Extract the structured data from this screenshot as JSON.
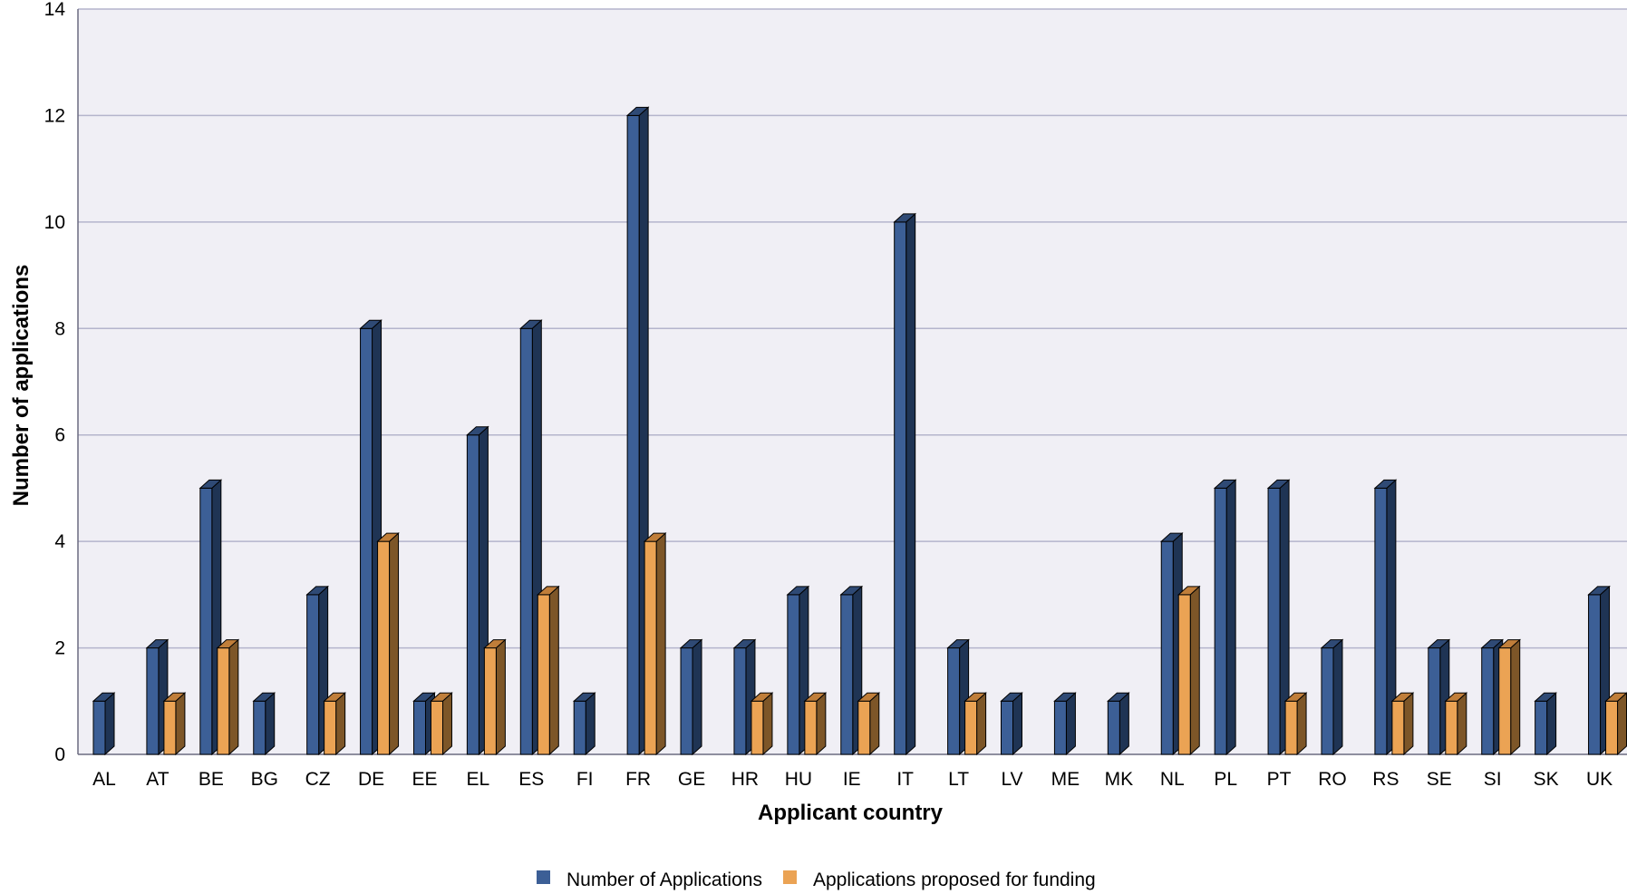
{
  "chart_data": {
    "type": "bar",
    "style": "3d-clustered-columns",
    "title": "",
    "xlabel": "Applicant country",
    "ylabel": "Number of applications",
    "ylim": [
      0,
      14
    ],
    "yticks": [
      0,
      2,
      4,
      6,
      8,
      10,
      12,
      14
    ],
    "grid": true,
    "legend_position": "bottom",
    "categories": [
      "AL",
      "AT",
      "BE",
      "BG",
      "CZ",
      "DE",
      "EE",
      "EL",
      "ES",
      "FI",
      "FR",
      "GE",
      "HR",
      "HU",
      "IE",
      "IT",
      "LT",
      "LV",
      "ME",
      "MK",
      "NL",
      "PL",
      "PT",
      "RO",
      "RS",
      "SE",
      "SI",
      "SK",
      "UK"
    ],
    "series": [
      {
        "name": "Number of Applications",
        "color": "#3c5f96",
        "values": [
          1,
          2,
          5,
          1,
          3,
          8,
          1,
          6,
          8,
          1,
          12,
          2,
          2,
          3,
          3,
          10,
          2,
          1,
          1,
          1,
          4,
          5,
          5,
          2,
          5,
          2,
          2,
          1,
          3
        ]
      },
      {
        "name": "Applications proposed for funding",
        "color": "#eba354",
        "values": [
          0,
          1,
          2,
          0,
          1,
          4,
          1,
          2,
          3,
          0,
          4,
          0,
          1,
          1,
          1,
          0,
          1,
          0,
          0,
          0,
          3,
          0,
          1,
          0,
          1,
          1,
          2,
          0,
          1
        ]
      }
    ],
    "colors": {
      "plot_background": "#f0eff5",
      "gridline": "#b4b4cc",
      "series1_side": "#1f3454",
      "series1_top": "#2f4a75",
      "series2_side": "#7d5628",
      "series2_top": "#c07e3a"
    }
  }
}
